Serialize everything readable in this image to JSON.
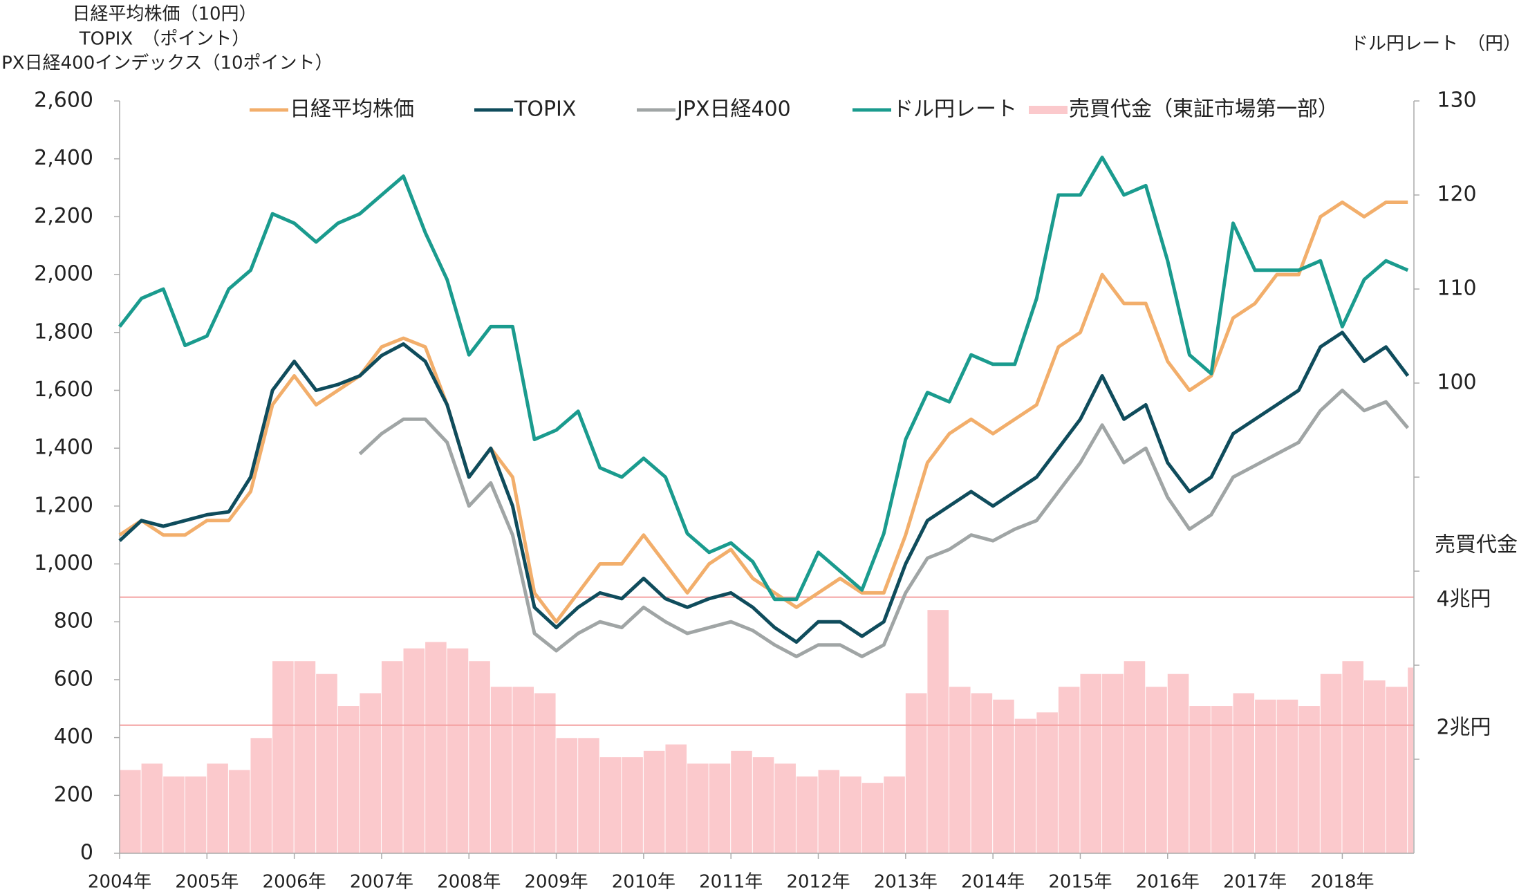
{
  "chart_data": {
    "type": "line",
    "ytitle_lines": [
      "日経平均株価（10円）",
      "TOPIX　（ポイント）",
      "JPX日経400インデックス（10ポイント）"
    ],
    "y2title": "ドル円レート　（円）",
    "y3title": "売買代金",
    "x": [
      2004,
      2004.25,
      2004.5,
      2004.75,
      2005,
      2005.25,
      2005.5,
      2005.75,
      2006,
      2006.25,
      2006.5,
      2006.75,
      2007,
      2007.25,
      2007.5,
      2007.75,
      2008,
      2008.25,
      2008.5,
      2008.75,
      2009,
      2009.25,
      2009.5,
      2009.75,
      2010,
      2010.25,
      2010.5,
      2010.75,
      2011,
      2011.25,
      2011.5,
      2011.75,
      2012,
      2012.25,
      2012.5,
      2012.75,
      2013,
      2013.25,
      2013.5,
      2013.75,
      2014,
      2014.25,
      2014.5,
      2014.75,
      2015,
      2015.25,
      2015.5,
      2015.75,
      2016,
      2016.25,
      2016.5,
      2016.75,
      2017,
      2017.25,
      2017.5,
      2017.75,
      2018,
      2018.25,
      2018.5,
      2018.75
    ],
    "xlim": [
      2004,
      2018.82
    ],
    "xticks": [
      {
        "value": 2004,
        "label": "2004年"
      },
      {
        "value": 2005,
        "label": "2005年"
      },
      {
        "value": 2006,
        "label": "2006年"
      },
      {
        "value": 2007,
        "label": "2007年"
      },
      {
        "value": 2008,
        "label": "2008年"
      },
      {
        "value": 2009,
        "label": "2009年"
      },
      {
        "value": 2010,
        "label": "2010年"
      },
      {
        "value": 2011,
        "label": "2011年"
      },
      {
        "value": 2012,
        "label": "2012年"
      },
      {
        "value": 2013,
        "label": "2013年"
      },
      {
        "value": 2014,
        "label": "2014年"
      },
      {
        "value": 2015,
        "label": "2015年"
      },
      {
        "value": 2016,
        "label": "2016年"
      },
      {
        "value": 2017,
        "label": "2017年"
      },
      {
        "value": 2018,
        "label": "2018年"
      }
    ],
    "ylim": [
      0,
      2600
    ],
    "yticks": [
      0,
      200,
      400,
      600,
      800,
      {
        "value": 1000,
        "label": "1,000"
      },
      {
        "value": 1200,
        "label": "1,200"
      },
      {
        "value": 1400,
        "label": "1,400"
      },
      {
        "value": 1600,
        "label": "1,600"
      },
      {
        "value": 1800,
        "label": "1,800"
      },
      {
        "value": 2000,
        "label": "2,000"
      },
      {
        "value": 2200,
        "label": "2,200"
      },
      {
        "value": 2400,
        "label": "2,400"
      },
      {
        "value": 2600,
        "label": "2,600"
      }
    ],
    "y2lim": [
      50,
      130
    ],
    "y2ticks": [
      100,
      110,
      120,
      130
    ],
    "y2minor_ticks": [
      60,
      70,
      80,
      90
    ],
    "y3lim": [
      0,
      11.75
    ],
    "y3ticks": [
      {
        "value": 2,
        "label": "2兆円"
      },
      {
        "value": 4,
        "label": "4兆円"
      }
    ],
    "series": [
      {
        "name": "日経平均株価",
        "color": "#f2ae6b",
        "values": [
          1100,
          1150,
          1100,
          1100,
          1150,
          1150,
          1250,
          1550,
          1650,
          1550,
          1600,
          1650,
          1750,
          1780,
          1750,
          1550,
          1300,
          1400,
          1300,
          900,
          800,
          900,
          1000,
          1000,
          1100,
          1000,
          900,
          1000,
          1050,
          950,
          900,
          850,
          900,
          950,
          900,
          900,
          1100,
          1350,
          1450,
          1500,
          1450,
          1500,
          1550,
          1750,
          1800,
          2000,
          1900,
          1900,
          1700,
          1600,
          1650,
          1850,
          1900,
          2000,
          2000,
          2200,
          2250,
          2200,
          2250,
          2250
        ]
      },
      {
        "name": "TOPIX",
        "color": "#0f4c5c",
        "values": [
          1080,
          1150,
          1130,
          1150,
          1170,
          1180,
          1300,
          1600,
          1700,
          1600,
          1620,
          1650,
          1720,
          1760,
          1700,
          1550,
          1300,
          1400,
          1200,
          850,
          780,
          850,
          900,
          880,
          950,
          880,
          850,
          880,
          900,
          850,
          780,
          730,
          800,
          800,
          750,
          800,
          1000,
          1150,
          1200,
          1250,
          1200,
          1250,
          1300,
          1400,
          1500,
          1650,
          1500,
          1550,
          1350,
          1250,
          1300,
          1450,
          1500,
          1550,
          1600,
          1750,
          1800,
          1700,
          1750,
          1650
        ]
      },
      {
        "name": "JPX日経400",
        "color": "#a0a5a5",
        "values": [
          null,
          null,
          null,
          null,
          null,
          null,
          null,
          null,
          null,
          null,
          null,
          1380,
          1450,
          1500,
          1500,
          1420,
          1200,
          1280,
          1100,
          760,
          700,
          760,
          800,
          780,
          850,
          800,
          760,
          780,
          800,
          770,
          720,
          680,
          720,
          720,
          680,
          720,
          900,
          1020,
          1050,
          1100,
          1080,
          1120,
          1150,
          1250,
          1350,
          1480,
          1350,
          1400,
          1230,
          1120,
          1170,
          1300,
          1340,
          1380,
          1420,
          1530,
          1600,
          1530,
          1560,
          1470
        ]
      },
      {
        "name": "ドル円レート",
        "color": "#1a9b8e",
        "axis": "y2",
        "values": [
          106,
          109,
          110,
          104,
          105,
          110,
          112,
          118,
          117,
          115,
          117,
          118,
          120,
          122,
          116,
          111,
          103,
          106,
          106,
          94,
          95,
          97,
          91,
          90,
          92,
          90,
          84,
          82,
          83,
          81,
          77,
          77,
          82,
          80,
          78,
          84,
          94,
          99,
          98,
          103,
          102,
          102,
          109,
          120,
          120,
          124,
          120,
          121,
          113,
          103,
          101,
          117,
          112,
          112,
          112,
          113,
          106,
          111,
          113,
          112
        ]
      },
      {
        "name": "売買代金（東証市場第一部）",
        "color": "#fbc9cc",
        "axis": "y3",
        "values": [
          1.3,
          1.4,
          1.2,
          1.2,
          1.4,
          1.3,
          1.8,
          3.0,
          3.0,
          2.8,
          2.3,
          2.5,
          3.0,
          3.2,
          3.3,
          3.2,
          3.0,
          2.6,
          2.6,
          2.5,
          1.8,
          1.8,
          1.5,
          1.5,
          1.6,
          1.7,
          1.4,
          1.4,
          1.6,
          1.5,
          1.4,
          1.2,
          1.3,
          1.2,
          1.1,
          1.2,
          2.5,
          3.8,
          2.6,
          2.5,
          2.4,
          2.1,
          2.2,
          2.6,
          2.8,
          2.8,
          3.0,
          2.6,
          2.8,
          2.3,
          2.3,
          2.5,
          2.4,
          2.4,
          2.3,
          2.8,
          3.0,
          2.7,
          2.6,
          2.9
        ]
      }
    ]
  }
}
